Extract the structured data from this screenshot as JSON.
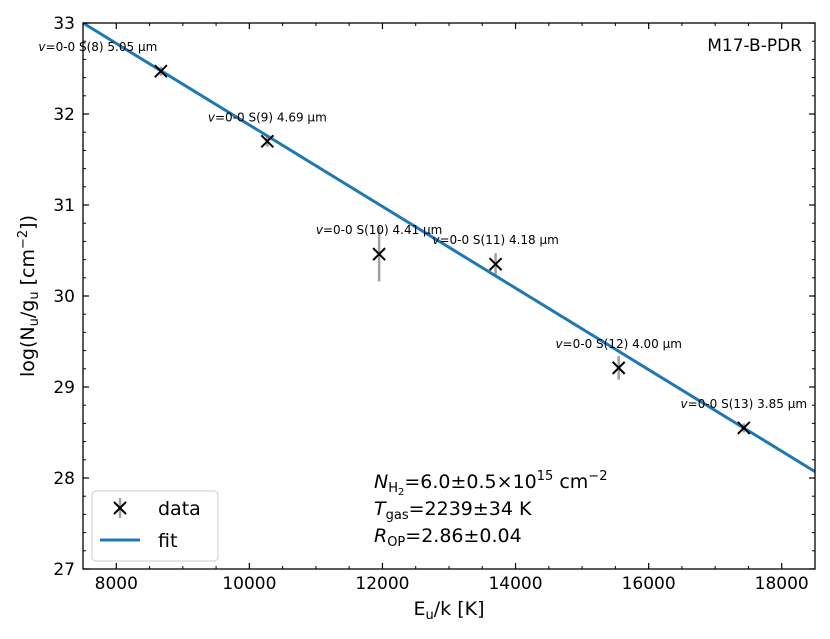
{
  "chart_data": {
    "type": "scatter",
    "panel_label": "M17-B-PDR",
    "xlabel": {
      "main": "E",
      "sub": "u",
      "tail": "/k [K]"
    },
    "ylabel": {
      "pre": "log(N",
      "sub1": "u",
      "mid": "/g",
      "sub2": "u",
      "mid2": " [cm",
      "sup": "−2",
      "post": "])"
    },
    "xlim": [
      7500,
      18500
    ],
    "ylim": [
      27,
      33
    ],
    "xticks": [
      8000,
      10000,
      12000,
      14000,
      16000,
      18000
    ],
    "yticks": [
      27,
      28,
      29,
      30,
      31,
      32,
      33
    ],
    "points": [
      {
        "x": 8670,
        "y": 32.47,
        "err": 0.05,
        "label_pre": "v",
        "label_post": "=0-0 S(8)  5.05 μm",
        "label_pos": "above-left"
      },
      {
        "x": 10270,
        "y": 31.7,
        "err": 0.06,
        "label_pre": "v",
        "label_post": "=0-0 S(9)  4.69 μm",
        "label_pos": "above"
      },
      {
        "x": 11950,
        "y": 30.46,
        "err": 0.3,
        "label_pre": "v",
        "label_post": "=0-0 S(10)  4.41 μm",
        "label_pos": "above"
      },
      {
        "x": 13700,
        "y": 30.35,
        "err": 0.12,
        "label_pre": "v",
        "label_post": "=0-0 S(11)  4.18 μm",
        "label_pos": "above"
      },
      {
        "x": 15550,
        "y": 29.21,
        "err": 0.13,
        "label_pre": "v",
        "label_post": "=0-0 S(12)  4.00 μm",
        "label_pos": "above"
      },
      {
        "x": 17430,
        "y": 28.55,
        "err": 0.05,
        "label_pre": "v",
        "label_post": "=0-0 S(13)  3.85 μm",
        "label_pos": "above"
      }
    ],
    "fit": {
      "x": [
        7500,
        18500
      ],
      "y": [
        33.0,
        28.07
      ]
    },
    "legend": {
      "data_label": "data",
      "fit_label": "fit",
      "position": "lower-left"
    },
    "annotations": {
      "n_sym": "N",
      "n_sub": "H",
      "n_sub2": "2",
      "n_val": "=6.0±0.5×10",
      "n_exp": "15",
      "n_unit": " cm",
      "n_unit_exp": "−2",
      "t_sym": "T",
      "t_sub": "gas",
      "t_val": "=2239±34 K",
      "r_sym": "R",
      "r_sub": "OP",
      "r_val": "=2.86±0.04"
    },
    "colors": {
      "fit": "#1f77b4",
      "marker": "#000000",
      "errorbar": "#a0a0a0"
    }
  }
}
